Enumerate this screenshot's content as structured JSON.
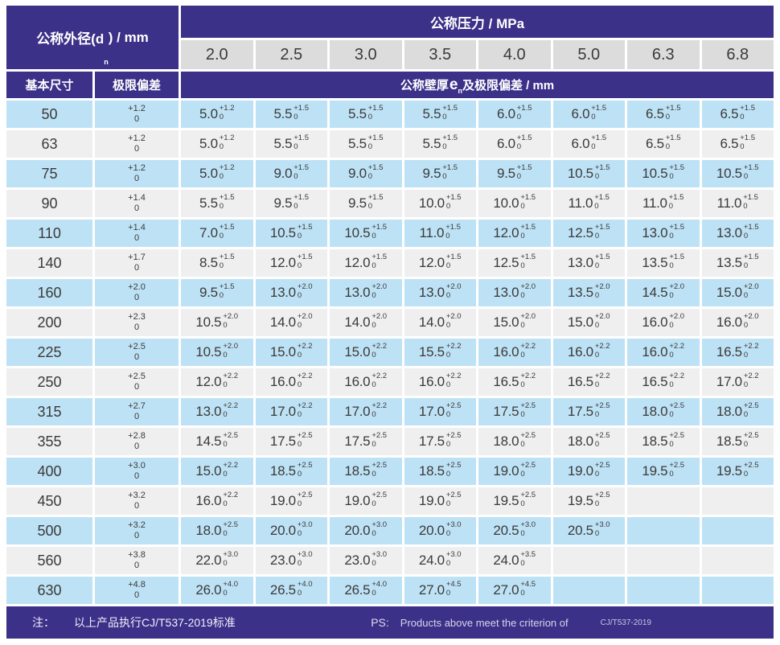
{
  "table": {
    "od_header": {
      "pre": "公称外径(d",
      "sub": "n",
      "post": ") / mm"
    },
    "pressure_header": "公称压力 / MPa",
    "pressure_values": [
      "2.0",
      "2.5",
      "3.0",
      "3.5",
      "4.0",
      "5.0",
      "6.3",
      "6.8"
    ],
    "basic_size_header": "基本尺寸",
    "deviation_header": "极限偏差",
    "wall_header": {
      "pre": "公称壁厚",
      "e": "e",
      "sub": "n",
      "post": " 及极限偏差 / mm"
    },
    "rows": [
      {
        "dn": "50",
        "dev_t": "+1.2",
        "dev_b": "0",
        "cells": [
          {
            "v": "5.0",
            "t": "+1.2",
            "b": "0"
          },
          {
            "v": "5.5",
            "t": "+1.5",
            "b": "0"
          },
          {
            "v": "5.5",
            "t": "+1.5",
            "b": "0"
          },
          {
            "v": "5.5",
            "t": "+1.5",
            "b": "0"
          },
          {
            "v": "6.0",
            "t": "+1.5",
            "b": "0"
          },
          {
            "v": "6.0",
            "t": "+1.5",
            "b": "0"
          },
          {
            "v": "6.5",
            "t": "+1.5",
            "b": "0"
          },
          {
            "v": "6.5",
            "t": "+1.5",
            "b": "0"
          }
        ]
      },
      {
        "dn": "63",
        "dev_t": "+1.2",
        "dev_b": "0",
        "cells": [
          {
            "v": "5.0",
            "t": "+1.2",
            "b": "0"
          },
          {
            "v": "5.5",
            "t": "+1.5",
            "b": "0"
          },
          {
            "v": "5.5",
            "t": "+1.5",
            "b": "0"
          },
          {
            "v": "5.5",
            "t": "+1.5",
            "b": "0"
          },
          {
            "v": "6.0",
            "t": "+1.5",
            "b": "0"
          },
          {
            "v": "6.0",
            "t": "+1.5",
            "b": "0"
          },
          {
            "v": "6.5",
            "t": "+1.5",
            "b": "0"
          },
          {
            "v": "6.5",
            "t": "+1.5",
            "b": "0"
          }
        ]
      },
      {
        "dn": "75",
        "dev_t": "+1.2",
        "dev_b": "0",
        "cells": [
          {
            "v": "5.0",
            "t": "+1.2",
            "b": "0"
          },
          {
            "v": "9.0",
            "t": "+1.5",
            "b": "0"
          },
          {
            "v": "9.0",
            "t": "+1.5",
            "b": "0"
          },
          {
            "v": "9.5",
            "t": "+1.5",
            "b": "0"
          },
          {
            "v": "9.5",
            "t": "+1.5",
            "b": "0"
          },
          {
            "v": "10.5",
            "t": "+1.5",
            "b": "0"
          },
          {
            "v": "10.5",
            "t": "+1.5",
            "b": "0"
          },
          {
            "v": "10.5",
            "t": "+1.5",
            "b": "0"
          }
        ]
      },
      {
        "dn": "90",
        "dev_t": "+1.4",
        "dev_b": "0",
        "cells": [
          {
            "v": "5.5",
            "t": "+1.5",
            "b": "0"
          },
          {
            "v": "9.5",
            "t": "+1.5",
            "b": "0"
          },
          {
            "v": "9.5",
            "t": "+1.5",
            "b": "0"
          },
          {
            "v": "10.0",
            "t": "+1.5",
            "b": "0"
          },
          {
            "v": "10.0",
            "t": "+1.5",
            "b": "0"
          },
          {
            "v": "11.0",
            "t": "+1.5",
            "b": "0"
          },
          {
            "v": "11.0",
            "t": "+1.5",
            "b": "0"
          },
          {
            "v": "11.0",
            "t": "+1.5",
            "b": "0"
          }
        ]
      },
      {
        "dn": "110",
        "dev_t": "+1.4",
        "dev_b": "0",
        "cells": [
          {
            "v": "7.0",
            "t": "+1.5",
            "b": "0"
          },
          {
            "v": "10.5",
            "t": "+1.5",
            "b": "0"
          },
          {
            "v": "10.5",
            "t": "+1.5",
            "b": "0"
          },
          {
            "v": "11.0",
            "t": "+1.5",
            "b": "0"
          },
          {
            "v": "12.0",
            "t": "+1.5",
            "b": "0"
          },
          {
            "v": "12.5",
            "t": "+1.5",
            "b": "0"
          },
          {
            "v": "13.0",
            "t": "+1.5",
            "b": "0"
          },
          {
            "v": "13.0",
            "t": "+1.5",
            "b": "0"
          }
        ]
      },
      {
        "dn": "140",
        "dev_t": "+1.7",
        "dev_b": "0",
        "cells": [
          {
            "v": "8.5",
            "t": "+1.5",
            "b": "0"
          },
          {
            "v": "12.0",
            "t": "+1.5",
            "b": "0"
          },
          {
            "v": "12.0",
            "t": "+1.5",
            "b": "0"
          },
          {
            "v": "12.0",
            "t": "+1.5",
            "b": "0"
          },
          {
            "v": "12.5",
            "t": "+1.5",
            "b": "0"
          },
          {
            "v": "13.0",
            "t": "+1.5",
            "b": "0"
          },
          {
            "v": "13.5",
            "t": "+1.5",
            "b": "0"
          },
          {
            "v": "13.5",
            "t": "+1.5",
            "b": "0"
          }
        ]
      },
      {
        "dn": "160",
        "dev_t": "+2.0",
        "dev_b": "0",
        "cells": [
          {
            "v": "9.5",
            "t": "+1.5",
            "b": "0"
          },
          {
            "v": "13.0",
            "t": "+2.0",
            "b": "0"
          },
          {
            "v": "13.0",
            "t": "+2.0",
            "b": "0"
          },
          {
            "v": "13.0",
            "t": "+2.0",
            "b": "0"
          },
          {
            "v": "13.0",
            "t": "+2.0",
            "b": "0"
          },
          {
            "v": "13.5",
            "t": "+2.0",
            "b": "0"
          },
          {
            "v": "14.5",
            "t": "+2.0",
            "b": "0"
          },
          {
            "v": "15.0",
            "t": "+2.0",
            "b": "0"
          }
        ]
      },
      {
        "dn": "200",
        "dev_t": "+2.3",
        "dev_b": "0",
        "cells": [
          {
            "v": "10.5",
            "t": "+2.0",
            "b": "0"
          },
          {
            "v": "14.0",
            "t": "+2.0",
            "b": "0"
          },
          {
            "v": "14.0",
            "t": "+2.0",
            "b": "0"
          },
          {
            "v": "14.0",
            "t": "+2.0",
            "b": "0"
          },
          {
            "v": "15.0",
            "t": "+2.0",
            "b": "0"
          },
          {
            "v": "15.0",
            "t": "+2.0",
            "b": "0"
          },
          {
            "v": "16.0",
            "t": "+2.0",
            "b": "0"
          },
          {
            "v": "16.0",
            "t": "+2.0",
            "b": "0"
          }
        ]
      },
      {
        "dn": "225",
        "dev_t": "+2.5",
        "dev_b": "0",
        "cells": [
          {
            "v": "10.5",
            "t": "+2.0",
            "b": "0"
          },
          {
            "v": "15.0",
            "t": "+2.2",
            "b": "0"
          },
          {
            "v": "15.0",
            "t": "+2.2",
            "b": "0"
          },
          {
            "v": "15.5",
            "t": "+2.2",
            "b": "0"
          },
          {
            "v": "16.0",
            "t": "+2.2",
            "b": "0"
          },
          {
            "v": "16.0",
            "t": "+2.2",
            "b": "0"
          },
          {
            "v": "16.0",
            "t": "+2.2",
            "b": "0"
          },
          {
            "v": "16.5",
            "t": "+2.2",
            "b": "0"
          }
        ]
      },
      {
        "dn": "250",
        "dev_t": "+2.5",
        "dev_b": "0",
        "cells": [
          {
            "v": "12.0",
            "t": "+2.2",
            "b": "0"
          },
          {
            "v": "16.0",
            "t": "+2.2",
            "b": "0"
          },
          {
            "v": "16.0",
            "t": "+2.2",
            "b": "0"
          },
          {
            "v": "16.0",
            "t": "+2.2",
            "b": "0"
          },
          {
            "v": "16.5",
            "t": "+2.2",
            "b": "0"
          },
          {
            "v": "16.5",
            "t": "+2.2",
            "b": "0"
          },
          {
            "v": "16.5",
            "t": "+2.2",
            "b": "0"
          },
          {
            "v": "17.0",
            "t": "+2.2",
            "b": "0"
          }
        ]
      },
      {
        "dn": "315",
        "dev_t": "+2.7",
        "dev_b": "0",
        "cells": [
          {
            "v": "13.0",
            "t": "+2.2",
            "b": "0"
          },
          {
            "v": "17.0",
            "t": "+2.2",
            "b": "0"
          },
          {
            "v": "17.0",
            "t": "+2.2",
            "b": "0"
          },
          {
            "v": "17.0",
            "t": "+2.5",
            "b": "0"
          },
          {
            "v": "17.5",
            "t": "+2.5",
            "b": "0"
          },
          {
            "v": "17.5",
            "t": "+2.5",
            "b": "0"
          },
          {
            "v": "18.0",
            "t": "+2.5",
            "b": "0"
          },
          {
            "v": "18.0",
            "t": "+2.5",
            "b": "0"
          }
        ]
      },
      {
        "dn": "355",
        "dev_t": "+2.8",
        "dev_b": "0",
        "cells": [
          {
            "v": "14.5",
            "t": "+2.5",
            "b": "0"
          },
          {
            "v": "17.5",
            "t": "+2.5",
            "b": "0"
          },
          {
            "v": "17.5",
            "t": "+2.5",
            "b": "0"
          },
          {
            "v": "17.5",
            "t": "+2.5",
            "b": "0"
          },
          {
            "v": "18.0",
            "t": "+2.5",
            "b": "0"
          },
          {
            "v": "18.0",
            "t": "+2.5",
            "b": "0"
          },
          {
            "v": "18.5",
            "t": "+2.5",
            "b": "0"
          },
          {
            "v": "18.5",
            "t": "+2.5",
            "b": "0"
          }
        ]
      },
      {
        "dn": "400",
        "dev_t": "+3.0",
        "dev_b": "0",
        "cells": [
          {
            "v": "15.0",
            "t": "+2.2",
            "b": "0"
          },
          {
            "v": "18.5",
            "t": "+2.5",
            "b": "0"
          },
          {
            "v": "18.5",
            "t": "+2.5",
            "b": "0"
          },
          {
            "v": "18.5",
            "t": "+2.5",
            "b": "0"
          },
          {
            "v": "19.0",
            "t": "+2.5",
            "b": "0"
          },
          {
            "v": "19.0",
            "t": "+2.5",
            "b": "0"
          },
          {
            "v": "19.5",
            "t": "+2.5",
            "b": "0"
          },
          {
            "v": "19.5",
            "t": "+2.5",
            "b": "0"
          }
        ]
      },
      {
        "dn": "450",
        "dev_t": "+3.2",
        "dev_b": "0",
        "cells": [
          {
            "v": "16.0",
            "t": "+2.2",
            "b": "0"
          },
          {
            "v": "19.0",
            "t": "+2.5",
            "b": "0"
          },
          {
            "v": "19.0",
            "t": "+2.5",
            "b": "0"
          },
          {
            "v": "19.0",
            "t": "+2.5",
            "b": "0"
          },
          {
            "v": "19.5",
            "t": "+2.5",
            "b": "0"
          },
          {
            "v": "19.5",
            "t": "+2.5",
            "b": "0"
          },
          null,
          null
        ]
      },
      {
        "dn": "500",
        "dev_t": "+3.2",
        "dev_b": "0",
        "cells": [
          {
            "v": "18.0",
            "t": "+2.5",
            "b": "0"
          },
          {
            "v": "20.0",
            "t": "+3.0",
            "b": "0"
          },
          {
            "v": "20.0",
            "t": "+3.0",
            "b": "0"
          },
          {
            "v": "20.0",
            "t": "+3.0",
            "b": "0"
          },
          {
            "v": "20.5",
            "t": "+3.0",
            "b": "0"
          },
          {
            "v": "20.5",
            "t": "+3.0",
            "b": "0"
          },
          null,
          null
        ]
      },
      {
        "dn": "560",
        "dev_t": "+3.8",
        "dev_b": "0",
        "cells": [
          {
            "v": "22.0",
            "t": "+3.0",
            "b": "0"
          },
          {
            "v": "23.0",
            "t": "+3.0",
            "b": "0"
          },
          {
            "v": "23.0",
            "t": "+3.0",
            "b": "0"
          },
          {
            "v": "24.0",
            "t": "+3.0",
            "b": "0"
          },
          {
            "v": "24.0",
            "t": "+3.5",
            "b": "0"
          },
          null,
          null,
          null
        ]
      },
      {
        "dn": "630",
        "dev_t": "+4.8",
        "dev_b": "0",
        "cells": [
          {
            "v": "26.0",
            "t": "+4.0",
            "b": "0"
          },
          {
            "v": "26.5",
            "t": "+4.0",
            "b": "0"
          },
          {
            "v": "26.5",
            "t": "+4.0",
            "b": "0"
          },
          {
            "v": "27.0",
            "t": "+4.5",
            "b": "0"
          },
          {
            "v": "27.0",
            "t": "+4.5",
            "b": "0"
          },
          null,
          null,
          null
        ]
      }
    ]
  },
  "footer": {
    "note_label": "注：",
    "note_text": "以上产品执行CJ/T537-2019标准",
    "ps_label": "PS:",
    "ps_text": "Products above meet the criterion of",
    "ps_standard": "CJ/T537-2019"
  },
  "colors": {
    "header_purple": "#3b3188",
    "pressure_cell_gray": "#dcdcdc",
    "row_blue": "#bee2f5",
    "row_gray": "#efefef",
    "text_dark": "#3a3a3a",
    "text_white": "#ffffff"
  }
}
